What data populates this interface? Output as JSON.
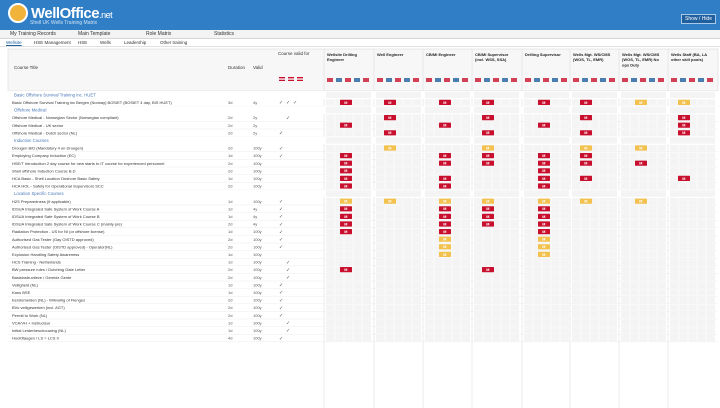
{
  "app": {
    "logo": "WellOffice",
    "logo_suffix": ".net",
    "tagline": "Shell UK Wells Training Matrix",
    "header_button": "Show / Hide"
  },
  "topnav": [
    "My Training Records",
    "Main Template",
    "Role Matrix",
    "Statistics"
  ],
  "subnav": {
    "items": [
      "Wellsite",
      "HSE Management",
      "HSE",
      "Wells",
      "Leadership",
      "Other training"
    ],
    "active": 0
  },
  "columns": {
    "course_title": "Course Title",
    "duration": "Duration",
    "valid": "Valid",
    "course_valid_for": "Course valid for"
  },
  "roles": [
    "Wellsite Drilling Engineer",
    "Well Engineer",
    "CB/MI Engineer",
    "CB/MI Supervisor (incl. WSS, SSA)",
    "Drilling Supervisor",
    "Wells Mgt. WS/CMS (WOS, TL, EMR)",
    "Wells Mgt. WS/CMS (WOS, TL, EMR) No ops Duty",
    "Wells Staff (BA, LA other skill pools)"
  ],
  "legend_code": "M",
  "colors": {
    "header": "#2f7ec6",
    "mandatory": "#c8102e",
    "recommended": "#f2c14e",
    "section": "#4a78b8"
  },
  "rows": [
    {
      "type": "section",
      "title": "Basic Offshore Survival Training inc. HUET"
    },
    {
      "type": "course",
      "title": "Basic Offshore Survival Training inc Bergen (Norway) BOSIET (BOSIET 4 day, BIS HUET)",
      "dur": "3d",
      "valid": "4y",
      "checks": [
        1,
        1,
        1
      ],
      "cells": "MMMMMMYY"
    },
    {
      "type": "section",
      "title": "Offshore Medical"
    },
    {
      "type": "course",
      "title": "Offshore Medical - Norwegian Sector (Norwegian compliant)",
      "dur": "2d",
      "valid": "2y",
      "checks": [
        0,
        1,
        0
      ],
      "cells": "-M-M-M-M"
    },
    {
      "type": "course",
      "title": "Offshore Medical - UK sector",
      "dur": "2d",
      "valid": "2y",
      "checks": [
        0,
        0,
        0
      ],
      "cells": "M-M-M--M"
    },
    {
      "type": "course",
      "title": "Offshore Medical - Dutch sector (NL)",
      "dur": "2d",
      "valid": "2y",
      "checks": [
        1,
        0,
        0
      ],
      "cells": "-M-M-M-M"
    },
    {
      "type": "section",
      "title": "Induction Courses"
    },
    {
      "type": "course",
      "title": "Drougen B/D (Mandatory 4 on Drougen)",
      "dur": "2d",
      "valid": "100y",
      "checks": [
        1,
        0,
        0
      ],
      "cells": "-Y-Y-YY-"
    },
    {
      "type": "course",
      "title": "Employing Company Induction (EC)",
      "dur": "1d",
      "valid": "100y",
      "checks": [
        1,
        0,
        0
      ],
      "cells": "M-MMMM--"
    },
    {
      "type": "course",
      "title": "HSE/T Introduction 2 day course for new starts to IT course for experienced personnel",
      "dur": "2d",
      "valid": "100y",
      "checks": [
        0,
        0,
        0
      ],
      "cells": "M-MMMMM-"
    },
    {
      "type": "course",
      "title": "Shell offshore Induction Course B.D",
      "dur": "2d",
      "valid": "100y",
      "checks": [
        0,
        0,
        0
      ],
      "cells": "M---M---"
    },
    {
      "type": "course",
      "title": "HCA Basic - Shell Location Onshore Basic Safety",
      "dur": "1d",
      "valid": "100y",
      "checks": [
        0,
        0,
        0
      ],
      "cells": "M-M-MM-M"
    },
    {
      "type": "course",
      "title": "HCA HOL - Safety for Operational Supervisors SCC",
      "dur": "2d",
      "valid": "100y",
      "checks": [
        0,
        0,
        0
      ],
      "cells": "M-M-M---"
    },
    {
      "type": "section",
      "title": "Location Specific Courses"
    },
    {
      "type": "course",
      "title": "H2S Preparedness (if applicable)",
      "dur": "1d",
      "valid": "100y",
      "checks": [
        1,
        0,
        0
      ],
      "cells": "YYYYYYY-"
    },
    {
      "type": "course",
      "title": "IDSUA Integrated Safe System of Work Course A",
      "dur": "1d",
      "valid": "4y",
      "checks": [
        1,
        0,
        0
      ],
      "cells": "M-MMM---"
    },
    {
      "type": "course",
      "title": "IDSUA Integrated Safe System of Work Course B",
      "dur": "1d",
      "valid": "4y",
      "checks": [
        1,
        0,
        0
      ],
      "cells": "M-MMM---"
    },
    {
      "type": "course",
      "title": "IDSUA Integrated Safe System of Work Course C (mainly pre)",
      "dur": "2d",
      "valid": "4y",
      "checks": [
        1,
        0,
        0
      ],
      "cells": "M-MMM---"
    },
    {
      "type": "course",
      "title": "Radiation Protection - US for NI (or offshore license)",
      "dur": "1d",
      "valid": "100y",
      "checks": [
        1,
        0,
        0
      ],
      "cells": "M-M-M---"
    },
    {
      "type": "course",
      "title": "Authorised Gas Tester (Gay OISTD approved)",
      "dur": "2d",
      "valid": "100y",
      "checks": [
        1,
        0,
        0
      ],
      "cells": "--Y-Y---"
    },
    {
      "type": "course",
      "title": "Authorised Gas Tester (OISTD approved) - Operator(NL)",
      "dur": "2d",
      "valid": "100y",
      "checks": [
        1,
        0,
        0
      ],
      "cells": "--Y-Y---"
    },
    {
      "type": "course",
      "title": "Explosion Handling Safety Awareness",
      "dur": "1d",
      "valid": "100y",
      "checks": [
        0,
        0,
        0
      ],
      "cells": "--Y-Y---"
    },
    {
      "type": "course",
      "title": "HCS Training - Netherlands",
      "dur": "1d",
      "valid": "100y",
      "checks": [
        0,
        1,
        0
      ],
      "cells": "--------"
    },
    {
      "type": "course",
      "title": "BW pressure rules / Dutching Gate Letter",
      "dur": "2d",
      "valid": "100y",
      "checks": [
        0,
        1,
        0
      ],
      "cells": "M--M----"
    },
    {
      "type": "course",
      "title": "Basisinstructieve / Gereidz Gente",
      "dur": "2d",
      "valid": "100y",
      "checks": [
        0,
        1,
        0
      ],
      "cells": "--------"
    },
    {
      "type": "course",
      "title": "Veiligheid (NL)",
      "dur": "1d",
      "valid": "100y",
      "checks": [
        1,
        0,
        0
      ],
      "cells": "--------"
    },
    {
      "type": "course",
      "title": "Kans BSE",
      "dur": "1d",
      "valid": "100y",
      "checks": [
        1,
        0,
        0
      ],
      "cells": "--------"
    },
    {
      "type": "course",
      "title": "Eerstemelden (NL) - Wrkveilig of Flenges",
      "dur": "2d",
      "valid": "100y",
      "checks": [
        1,
        0,
        0
      ],
      "cells": "--------"
    },
    {
      "type": "course",
      "title": "BVo veiligewerken (incl. AGT)",
      "dur": "2d",
      "valid": "100y",
      "checks": [
        1,
        0,
        0
      ],
      "cells": "--------"
    },
    {
      "type": "course",
      "title": "Permit to Work (NL)",
      "dur": "2d",
      "valid": "100y",
      "checks": [
        1,
        0,
        0
      ],
      "cells": "--------"
    },
    {
      "type": "course",
      "title": "VCA/VH + Instructeur",
      "dur": "1d",
      "valid": "100y",
      "checks": [
        0,
        1,
        0
      ],
      "cells": "--------"
    },
    {
      "type": "course",
      "title": "Initial Leiderbeschouwing (NL)",
      "dur": "1d",
      "valid": "100y",
      "checks": [
        0,
        1,
        0
      ],
      "cells": "--------"
    },
    {
      "type": "course",
      "title": "Hoofdtaugen / LS = LCS 0",
      "dur": "4d",
      "valid": "100y",
      "checks": [
        1,
        0,
        0
      ],
      "cells": "--------"
    }
  ]
}
